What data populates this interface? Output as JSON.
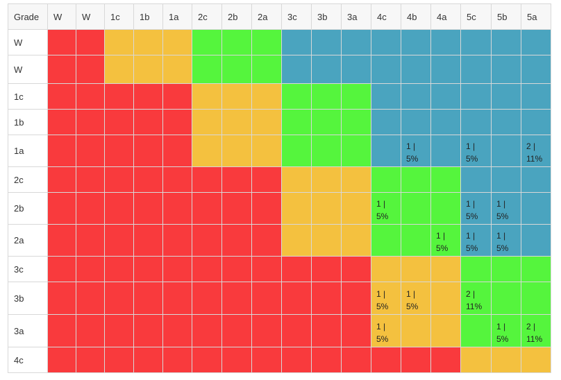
{
  "colors": {
    "red": "#f93a3d",
    "orange": "#f4c13f",
    "green": "#55f53d",
    "blue": "#4aa4bf",
    "header_bg": "#f7f7f7",
    "border": "#d8d8d8"
  },
  "grade_header": "Grade",
  "columns": [
    "W",
    "W",
    "1c",
    "1b",
    "1a",
    "2c",
    "2b",
    "2a",
    "3c",
    "3b",
    "3a",
    "4c",
    "4b",
    "4a",
    "5c",
    "5b",
    "5a"
  ],
  "rows": [
    {
      "label": "W",
      "colors": [
        "red",
        "red",
        "orange",
        "orange",
        "orange",
        "green",
        "green",
        "green",
        "blue",
        "blue",
        "blue",
        "blue",
        "blue",
        "blue",
        "blue",
        "blue",
        "blue"
      ],
      "cells": {}
    },
    {
      "label": "W",
      "colors": [
        "red",
        "red",
        "orange",
        "orange",
        "orange",
        "green",
        "green",
        "green",
        "blue",
        "blue",
        "blue",
        "blue",
        "blue",
        "blue",
        "blue",
        "blue",
        "blue"
      ],
      "cells": {}
    },
    {
      "label": "1c",
      "colors": [
        "red",
        "red",
        "red",
        "red",
        "red",
        "orange",
        "orange",
        "orange",
        "green",
        "green",
        "green",
        "blue",
        "blue",
        "blue",
        "blue",
        "blue",
        "blue"
      ],
      "cells": {}
    },
    {
      "label": "1b",
      "colors": [
        "red",
        "red",
        "red",
        "red",
        "red",
        "orange",
        "orange",
        "orange",
        "green",
        "green",
        "green",
        "blue",
        "blue",
        "blue",
        "blue",
        "blue",
        "blue"
      ],
      "cells": {}
    },
    {
      "label": "1a",
      "colors": [
        "red",
        "red",
        "red",
        "red",
        "red",
        "orange",
        "orange",
        "orange",
        "green",
        "green",
        "green",
        "blue",
        "blue",
        "blue",
        "blue",
        "blue",
        "blue"
      ],
      "cells": {
        "12": {
          "count": "1 |",
          "percent": "5%"
        },
        "14": {
          "count": "1 |",
          "percent": "5%"
        },
        "16": {
          "count": "2 |",
          "percent": "11%"
        }
      }
    },
    {
      "label": "2c",
      "colors": [
        "red",
        "red",
        "red",
        "red",
        "red",
        "red",
        "red",
        "red",
        "orange",
        "orange",
        "orange",
        "green",
        "green",
        "green",
        "blue",
        "blue",
        "blue"
      ],
      "cells": {}
    },
    {
      "label": "2b",
      "colors": [
        "red",
        "red",
        "red",
        "red",
        "red",
        "red",
        "red",
        "red",
        "orange",
        "orange",
        "orange",
        "green",
        "green",
        "green",
        "blue",
        "blue",
        "blue"
      ],
      "cells": {
        "11": {
          "count": "1 |",
          "percent": "5%"
        },
        "14": {
          "count": "1 |",
          "percent": "5%"
        },
        "15": {
          "count": "1 |",
          "percent": "5%"
        }
      }
    },
    {
      "label": "2a",
      "colors": [
        "red",
        "red",
        "red",
        "red",
        "red",
        "red",
        "red",
        "red",
        "orange",
        "orange",
        "orange",
        "green",
        "green",
        "green",
        "blue",
        "blue",
        "blue"
      ],
      "cells": {
        "13": {
          "count": "1 |",
          "percent": "5%"
        },
        "14": {
          "count": "1 |",
          "percent": "5%"
        },
        "15": {
          "count": "1 |",
          "percent": "5%"
        }
      }
    },
    {
      "label": "3c",
      "colors": [
        "red",
        "red",
        "red",
        "red",
        "red",
        "red",
        "red",
        "red",
        "red",
        "red",
        "red",
        "orange",
        "orange",
        "orange",
        "green",
        "green",
        "green"
      ],
      "cells": {}
    },
    {
      "label": "3b",
      "colors": [
        "red",
        "red",
        "red",
        "red",
        "red",
        "red",
        "red",
        "red",
        "red",
        "red",
        "red",
        "orange",
        "orange",
        "orange",
        "green",
        "green",
        "green"
      ],
      "cells": {
        "11": {
          "count": "1 |",
          "percent": "5%"
        },
        "12": {
          "count": "1 |",
          "percent": "5%"
        },
        "14": {
          "count": "2 |",
          "percent": "11%"
        }
      }
    },
    {
      "label": "3a",
      "colors": [
        "red",
        "red",
        "red",
        "red",
        "red",
        "red",
        "red",
        "red",
        "red",
        "red",
        "red",
        "orange",
        "orange",
        "orange",
        "green",
        "green",
        "green"
      ],
      "cells": {
        "11": {
          "count": "1 |",
          "percent": "5%"
        },
        "15": {
          "count": "1 |",
          "percent": "5%"
        },
        "16": {
          "count": "2 |",
          "percent": "11%"
        }
      }
    },
    {
      "label": "4c",
      "colors": [
        "red",
        "red",
        "red",
        "red",
        "red",
        "red",
        "red",
        "red",
        "red",
        "red",
        "red",
        "red",
        "red",
        "red",
        "orange",
        "orange",
        "orange"
      ],
      "cells": {}
    }
  ]
}
